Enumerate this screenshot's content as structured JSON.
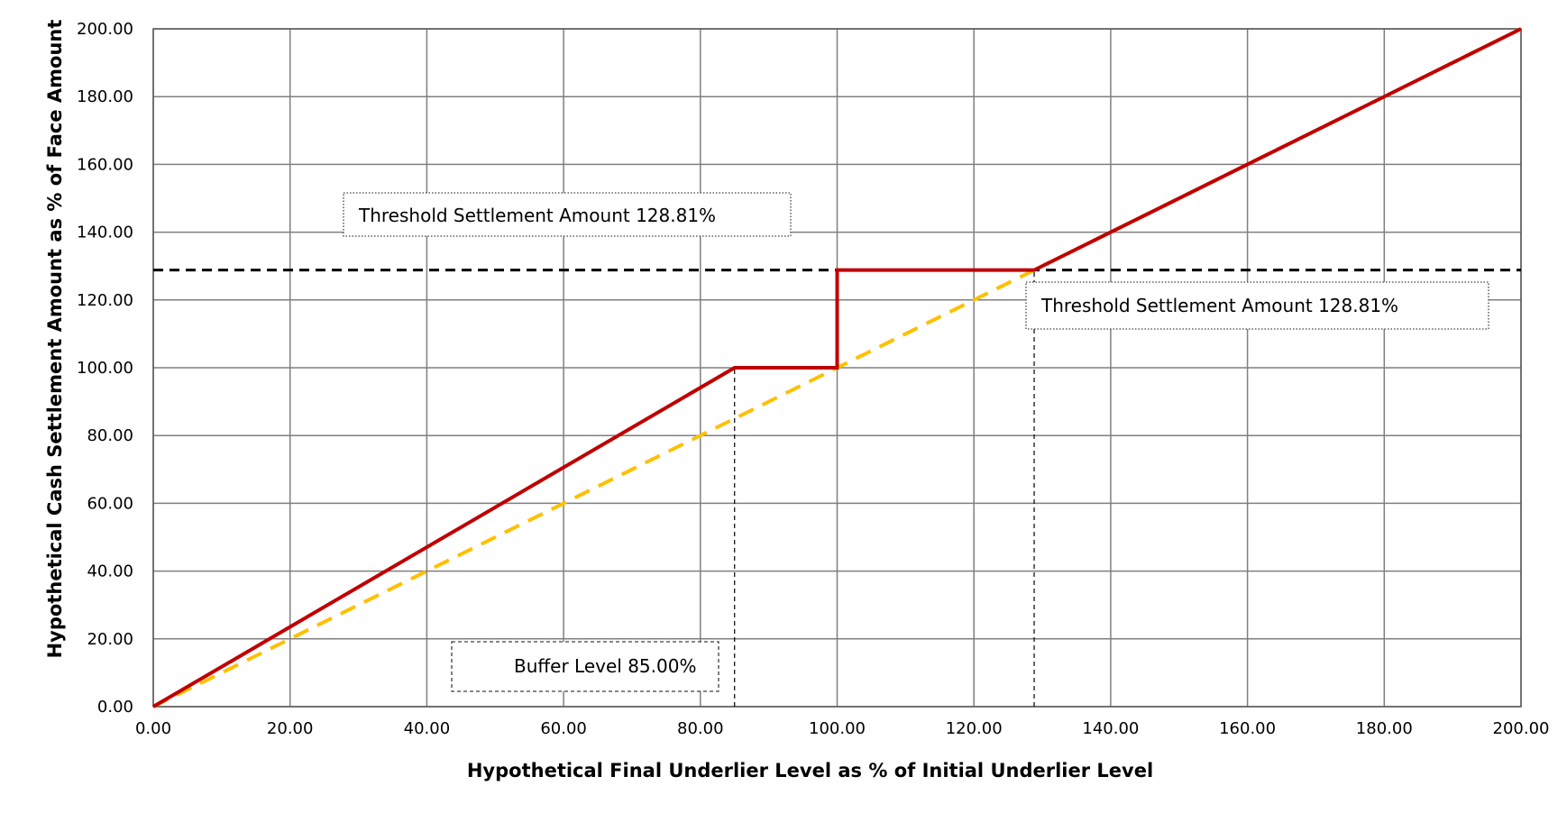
{
  "chart_data": {
    "type": "line",
    "xlabel": "Hypothetical Final Underlier Level as % of Initial Underlier Level",
    "ylabel": "Hypothetical Cash Settlement Amount as % of Face Amount",
    "xlim": [
      0,
      200
    ],
    "ylim": [
      0,
      200
    ],
    "x_ticks": [
      "0.00",
      "20.00",
      "40.00",
      "60.00",
      "80.00",
      "100.00",
      "120.00",
      "140.00",
      "160.00",
      "180.00",
      "200.00"
    ],
    "y_ticks": [
      "0.00",
      "20.00",
      "40.00",
      "60.00",
      "80.00",
      "100.00",
      "120.00",
      "140.00",
      "160.00",
      "180.00",
      "200.00"
    ],
    "grid": true,
    "legend": "none",
    "series": [
      {
        "color": "#c00000",
        "style": "solid",
        "x": [
          0,
          85,
          100,
          100,
          128.81,
          200
        ],
        "y": [
          0,
          100,
          100,
          128.81,
          128.81,
          200
        ]
      },
      {
        "color": "#ffc000",
        "style": "dashed",
        "x": [
          0,
          200
        ],
        "y": [
          0,
          200
        ]
      }
    ],
    "reference_lines": [
      {
        "orientation": "horizontal",
        "value": 128.81,
        "color": "#000000",
        "style": "dashed"
      },
      {
        "orientation": "vertical",
        "value": 85,
        "from": 0,
        "to": 100,
        "color": "#000000",
        "style": "dotted"
      },
      {
        "orientation": "vertical",
        "value": 128.81,
        "from": 0,
        "to": 128.81,
        "color": "#000000",
        "style": "dotted"
      }
    ],
    "annotations": [
      {
        "text": "Threshold Settlement Amount 128.81%"
      },
      {
        "text": "Threshold Settlement Amount 128.81%"
      },
      {
        "text": "Buffer Level 85.00%"
      }
    ]
  }
}
